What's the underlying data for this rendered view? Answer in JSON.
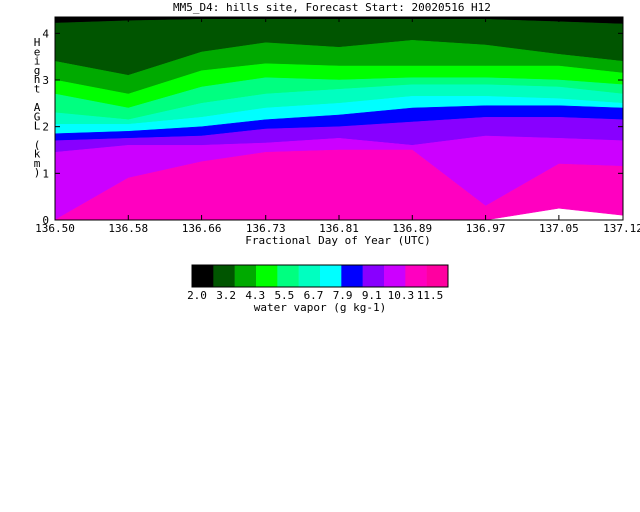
{
  "chart_data": {
    "type": "heatmap",
    "title": "MM5_D4: hills site,  Forecast Start: 20020516 H12",
    "xlabel": "Fractional Day of Year (UTC)",
    "ylabel_chars": [
      "H",
      "e",
      "i",
      "g",
      "h",
      "t",
      "",
      "A",
      "G",
      "L",
      "",
      "(",
      "k",
      "m",
      ")"
    ],
    "xlim": [
      136.5,
      137.12
    ],
    "ylim": [
      0,
      4.35
    ],
    "x_ticks": [
      {
        "value": 136.5,
        "label": "136.50"
      },
      {
        "value": 136.58,
        "label": "136.58"
      },
      {
        "value": 136.66,
        "label": "136.66"
      },
      {
        "value": 136.73,
        "label": "136.73"
      },
      {
        "value": 136.81,
        "label": "136.81"
      },
      {
        "value": 136.89,
        "label": "136.89"
      },
      {
        "value": 136.97,
        "label": "136.97"
      },
      {
        "value": 137.05,
        "label": "137.05"
      },
      {
        "value": 137.12,
        "label": "137.12"
      }
    ],
    "y_ticks": [
      {
        "value": 0,
        "label": "0"
      },
      {
        "value": 1,
        "label": "1"
      },
      {
        "value": 2,
        "label": "2"
      },
      {
        "value": 3,
        "label": "3"
      },
      {
        "value": 4,
        "label": "4"
      }
    ],
    "colorbar": {
      "label": "water vapor (g kg-1)",
      "tick_labels": [
        "2.0",
        "3.2",
        "4.3",
        "5.5",
        "6.7",
        "7.9",
        "9.1",
        "10.3",
        "11.5"
      ],
      "colors": [
        "#000000",
        "#005500",
        "#00aa00",
        "#00ff00",
        "#00ff80",
        "#00ffc0",
        "#00ffff",
        "#0000ff",
        "#8800ff",
        "#cc00ff",
        "#ff00c0",
        "#ff00a0"
      ]
    },
    "x": [
      136.5,
      136.58,
      136.66,
      136.73,
      136.81,
      136.89,
      136.97,
      137.05,
      137.12
    ],
    "level_heights_km": [
      [
        4.35,
        4.35,
        4.35,
        4.35,
        4.35,
        4.35,
        4.35,
        4.35,
        4.35
      ],
      [
        4.22,
        4.27,
        4.3,
        4.3,
        4.3,
        4.3,
        4.3,
        4.25,
        4.2
      ],
      [
        3.4,
        3.1,
        3.6,
        3.8,
        3.7,
        3.85,
        3.75,
        3.55,
        3.4
      ],
      [
        3.0,
        2.7,
        3.2,
        3.35,
        3.3,
        3.3,
        3.3,
        3.3,
        3.15
      ],
      [
        2.7,
        2.4,
        2.85,
        3.05,
        3.0,
        3.05,
        3.05,
        3.0,
        2.9
      ],
      [
        2.3,
        2.15,
        2.5,
        2.7,
        2.8,
        2.9,
        2.9,
        2.85,
        2.7
      ],
      [
        2.05,
        2.05,
        2.2,
        2.4,
        2.5,
        2.65,
        2.65,
        2.6,
        2.5
      ],
      [
        1.85,
        1.9,
        2.0,
        2.15,
        2.25,
        2.4,
        2.45,
        2.45,
        2.4
      ],
      [
        1.7,
        1.75,
        1.8,
        1.95,
        2.0,
        2.1,
        2.2,
        2.2,
        2.15
      ],
      [
        1.45,
        1.6,
        1.6,
        1.65,
        1.75,
        1.6,
        1.8,
        1.75,
        1.7
      ],
      [
        0.0,
        0.9,
        1.25,
        1.45,
        1.5,
        1.5,
        0.3,
        1.2,
        1.15
      ],
      [
        0.0,
        0.0,
        0.0,
        0.0,
        0.0,
        0.0,
        0.0,
        0.25,
        0.1
      ]
    ]
  }
}
